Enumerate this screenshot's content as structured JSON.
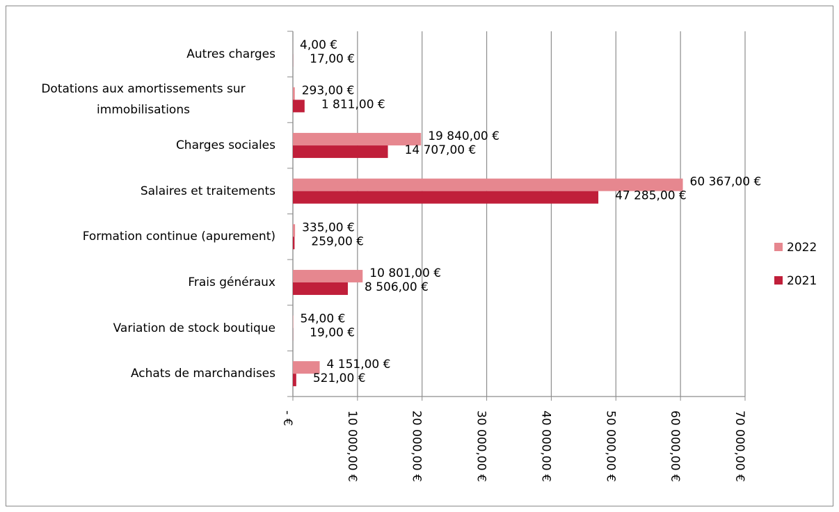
{
  "chart_data": {
    "type": "hbar",
    "categories": [
      "Autres charges",
      "Dotations aux amortissements sur immobilisations",
      "Charges sociales",
      "Salaires et traitements",
      "Formation continue (apurement)",
      "Frais généraux",
      "Variation de stock boutique",
      "Achats de marchandises"
    ],
    "series": [
      {
        "name": "2022",
        "color": "#e6878f",
        "values": [
          4,
          293,
          19840,
          60367,
          335,
          10801,
          54,
          4151
        ],
        "value_labels": [
          "4,00 €",
          "293,00 €",
          "19 840,00 €",
          "60 367,00 €",
          "335,00 €",
          "10 801,00 €",
          "54,00 €",
          "4 151,00 €"
        ]
      },
      {
        "name": "2021",
        "color": "#c01f3a",
        "values": [
          17,
          1811,
          14707,
          47285,
          259,
          8506,
          19,
          521
        ],
        "value_labels": [
          "17,00 €",
          "1 811,00 €",
          "14 707,00 €",
          "47 285,00 €",
          "259,00 €",
          "8 506,00 €",
          "19,00 €",
          "521,00 €"
        ]
      }
    ],
    "xlim": [
      0,
      70000
    ],
    "xticks": [
      {
        "value": 0,
        "label": "- €"
      },
      {
        "value": 10000,
        "label": "10 000,00 €"
      },
      {
        "value": 20000,
        "label": "20 000,00 €"
      },
      {
        "value": 30000,
        "label": "30 000,00 €"
      },
      {
        "value": 40000,
        "label": "40 000,00 €"
      },
      {
        "value": 50000,
        "label": "50 000,00 €"
      },
      {
        "value": 60000,
        "label": "60 000,00 €"
      },
      {
        "value": 70000,
        "label": "70 000,00 €"
      }
    ],
    "grid": true,
    "legend": "right"
  }
}
